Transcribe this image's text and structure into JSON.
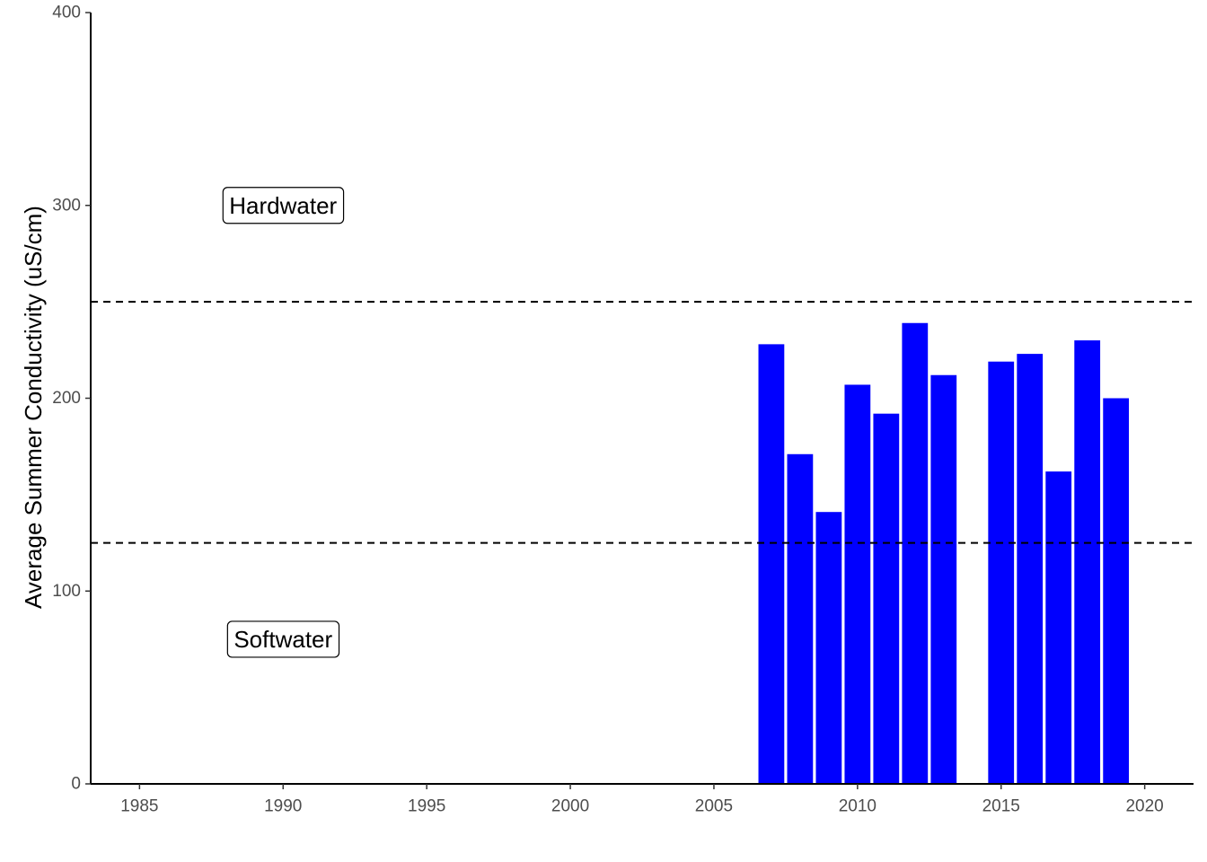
{
  "chart_data": {
    "type": "bar",
    "title": "",
    "xlabel": "",
    "ylabel": "Average Summer Conductivity (uS/cm)",
    "xlim": [
      1983.3,
      2021.7
    ],
    "ylim": [
      0,
      400
    ],
    "x_ticks": [
      1985,
      1990,
      1995,
      2000,
      2005,
      2010,
      2015,
      2020
    ],
    "y_ticks": [
      0,
      100,
      200,
      300,
      400
    ],
    "bar_color": "#0000ff",
    "x": [
      2007,
      2008,
      2009,
      2010,
      2011,
      2012,
      2013,
      2015,
      2016,
      2017,
      2018,
      2019
    ],
    "values": [
      228,
      171,
      141,
      207,
      192,
      239,
      212,
      219,
      223,
      162,
      230,
      200
    ],
    "reference_lines": [
      {
        "y": 250,
        "style": "dashed"
      },
      {
        "y": 125,
        "style": "dashed"
      }
    ],
    "annotations": [
      {
        "text": "Hardwater",
        "x": 1990,
        "y": 300
      },
      {
        "text": "Softwater",
        "x": 1990,
        "y": 75
      }
    ],
    "grid": false,
    "legend": "none"
  }
}
